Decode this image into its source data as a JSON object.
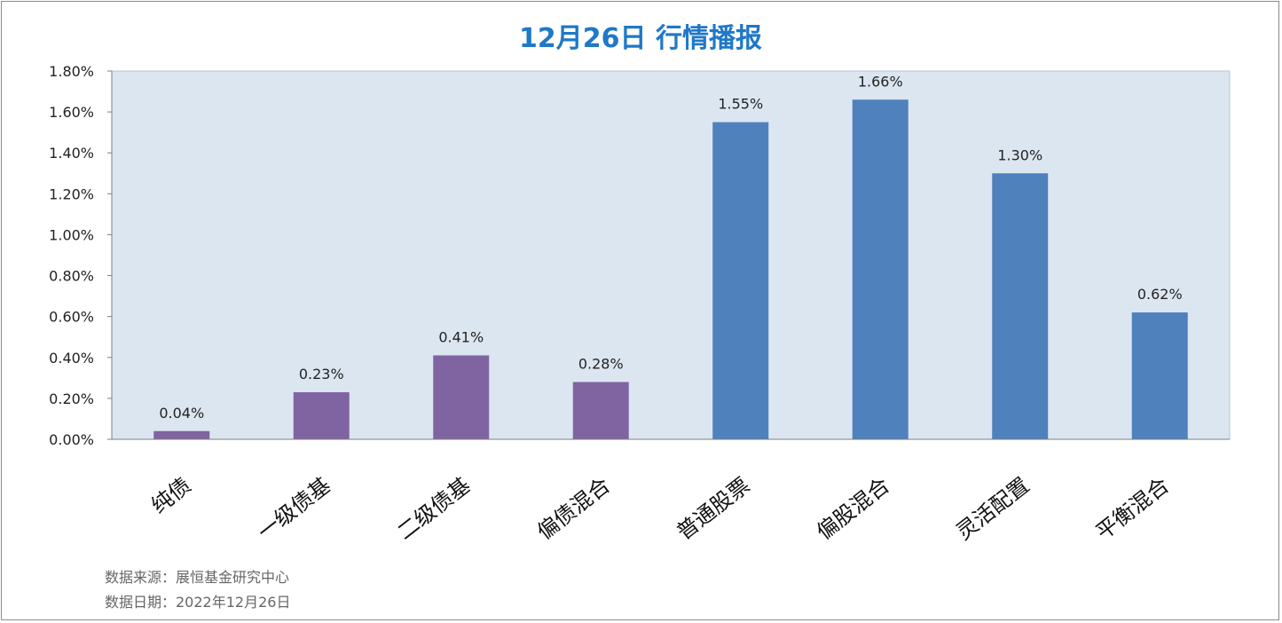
{
  "footer": {
    "source": "数据来源：展恒基金研究中心",
    "date": "数据日期：2022年12月26日"
  },
  "colors": {
    "title": "#1f78c8",
    "plot_bg": "#dce6f1",
    "bond_bar": "#8064a2",
    "equity_bar": "#4f81bd"
  },
  "chart_data": {
    "type": "bar",
    "title": "12月26日  行情播报",
    "xlabel": "",
    "ylabel": "",
    "ylim": [
      0,
      1.8
    ],
    "yticks": [
      "0.00%",
      "0.20%",
      "0.40%",
      "0.60%",
      "0.80%",
      "1.00%",
      "1.20%",
      "1.40%",
      "1.60%",
      "1.80%"
    ],
    "grid": false,
    "categories": [
      "纯债",
      "一级债基",
      "二级债基",
      "偏债混合",
      "普通股票",
      "偏股混合",
      "灵活配置",
      "平衡混合"
    ],
    "values": [
      0.04,
      0.23,
      0.41,
      0.28,
      1.55,
      1.66,
      1.3,
      0.62
    ],
    "value_labels": [
      "0.04%",
      "0.23%",
      "0.41%",
      "0.28%",
      "1.55%",
      "1.66%",
      "1.30%",
      "0.62%"
    ],
    "bar_colors": [
      "#8064a2",
      "#8064a2",
      "#8064a2",
      "#8064a2",
      "#4f81bd",
      "#4f81bd",
      "#4f81bd",
      "#4f81bd"
    ]
  }
}
